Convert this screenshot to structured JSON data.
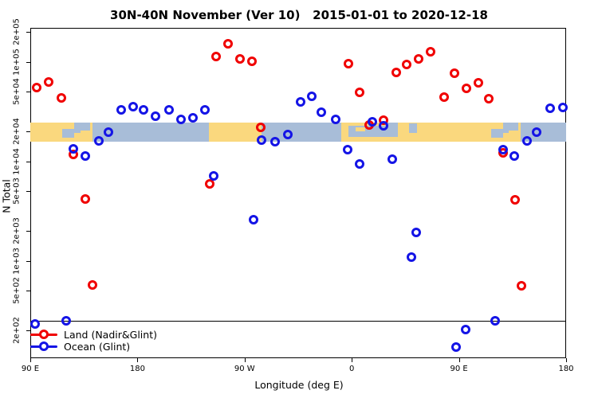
{
  "title": "30N-40N November (Ver 10)   2015-01-01 to 2020-12-18",
  "colors": {
    "land_series": "#f00000",
    "ocean_series": "#1414e6",
    "map_land": "#fad87e",
    "map_ocean": "#a8bdd8",
    "frame": "#000000"
  },
  "chart_data": {
    "type": "scatter",
    "title": "30N-40N November (Ver 10)   2015-01-01 to 2020-12-18",
    "xlabel": "Longitude (deg E)",
    "ylabel": "N Total",
    "x_axis": {
      "start_deg": 90,
      "end_deg": 540,
      "ticks": [
        {
          "deg": 90,
          "label": "90 E"
        },
        {
          "deg": 180,
          "label": "180"
        },
        {
          "deg": 270,
          "label": "90 W"
        },
        {
          "deg": 360,
          "label": "0"
        },
        {
          "deg": 450,
          "label": "90 E"
        },
        {
          "deg": 540,
          "label": "180"
        }
      ]
    },
    "y_axis": {
      "scale": "log",
      "ticks": [
        {
          "value": 200000,
          "label": "2e+05"
        },
        {
          "value": 100000,
          "label": "1e+05"
        },
        {
          "value": 50000,
          "label": "5e+04"
        },
        {
          "value": 20000,
          "label": "2e+04"
        },
        {
          "value": 10000,
          "label": "1e+04"
        },
        {
          "value": 5000,
          "label": "5e+03"
        },
        {
          "value": 2000,
          "label": "2e+03"
        },
        {
          "value": 1000,
          "label": "1e+03"
        },
        {
          "value": 500,
          "label": "5e+02"
        },
        {
          "value": 200,
          "label": "2e+02"
        }
      ]
    },
    "threshold_line_value": 250,
    "map_strip": {
      "top_value": 24500,
      "bottom_value": 15700,
      "base_segments": [
        {
          "from": 90,
          "to": 142,
          "kind": "land"
        },
        {
          "from": 142,
          "to": 240,
          "kind": "ocean"
        },
        {
          "from": 240,
          "to": 284,
          "kind": "land"
        },
        {
          "from": 284,
          "to": 351,
          "kind": "ocean"
        },
        {
          "from": 351,
          "to": 502,
          "kind": "land"
        },
        {
          "from": 502,
          "to": 540,
          "kind": "ocean"
        }
      ],
      "overlays": [
        {
          "from": 117,
          "to": 127,
          "top": 0.35,
          "h": 0.45,
          "kind": "ocean"
        },
        {
          "from": 127,
          "to": 140,
          "top": 0.0,
          "h": 0.55,
          "kind": "ocean"
        },
        {
          "from": 132,
          "to": 142,
          "top": 0.42,
          "h": 0.22,
          "kind": "land"
        },
        {
          "from": 357,
          "to": 399,
          "top": 0.15,
          "h": 0.6,
          "kind": "ocean"
        },
        {
          "from": 388,
          "to": 399,
          "top": 0.0,
          "h": 0.3,
          "kind": "ocean"
        },
        {
          "from": 363,
          "to": 371,
          "top": 0.25,
          "h": 0.2,
          "kind": "land"
        },
        {
          "from": 408,
          "to": 415,
          "top": 0.05,
          "h": 0.5,
          "kind": "ocean"
        },
        {
          "from": 477,
          "to": 487,
          "top": 0.35,
          "h": 0.45,
          "kind": "ocean"
        },
        {
          "from": 487,
          "to": 500,
          "top": 0.0,
          "h": 0.55,
          "kind": "ocean"
        },
        {
          "from": 492,
          "to": 502,
          "top": 0.42,
          "h": 0.22,
          "kind": "land"
        }
      ]
    },
    "series": [
      {
        "name": "Land (Nadir&Glint)",
        "color_key": "land_series",
        "points": [
          [
            95,
            56000
          ],
          [
            105,
            63000
          ],
          [
            116,
            44000
          ],
          [
            126,
            11800
          ],
          [
            136,
            4180
          ],
          [
            142,
            573
          ],
          [
            240,
            5930
          ],
          [
            246,
            114000
          ],
          [
            256,
            152000
          ],
          [
            266,
            108000
          ],
          [
            276,
            102000
          ],
          [
            283,
            22000
          ],
          [
            357,
            96000
          ],
          [
            366,
            50000
          ],
          [
            374,
            23200
          ],
          [
            386,
            25900
          ],
          [
            397,
            79000
          ],
          [
            406,
            94000
          ],
          [
            416,
            108000
          ],
          [
            426,
            128000
          ],
          [
            437,
            44500
          ],
          [
            446,
            78000
          ],
          [
            456,
            55000
          ],
          [
            466,
            62000
          ],
          [
            475,
            43000
          ],
          [
            487,
            12200
          ],
          [
            497,
            4140
          ],
          [
            502,
            570
          ]
        ]
      },
      {
        "name": "Ocean (Glint)",
        "color_key": "ocean_series",
        "points": [
          [
            94,
            235
          ],
          [
            120,
            254
          ],
          [
            126,
            13400
          ],
          [
            136,
            11500
          ],
          [
            147,
            16100
          ],
          [
            155,
            19800
          ],
          [
            166,
            32900
          ],
          [
            176,
            35500
          ],
          [
            185,
            32900
          ],
          [
            195,
            28400
          ],
          [
            206,
            32900
          ],
          [
            216,
            26800
          ],
          [
            226,
            27600
          ],
          [
            236,
            33300
          ],
          [
            244,
            7260
          ],
          [
            277,
            2590
          ],
          [
            284,
            16400
          ],
          [
            295,
            15800
          ],
          [
            306,
            18900
          ],
          [
            317,
            39800
          ],
          [
            326,
            45600
          ],
          [
            334,
            31400
          ],
          [
            346,
            26800
          ],
          [
            356,
            13100
          ],
          [
            366,
            9400
          ],
          [
            377,
            25100
          ],
          [
            386,
            22900
          ],
          [
            394,
            10600
          ],
          [
            410,
            1090
          ],
          [
            414,
            1940
          ],
          [
            447,
            136
          ],
          [
            455,
            205
          ],
          [
            480,
            250
          ],
          [
            487,
            13300
          ],
          [
            496,
            11500
          ],
          [
            507,
            16100
          ],
          [
            515,
            19700
          ],
          [
            526,
            34400
          ],
          [
            537,
            34800
          ]
        ]
      }
    ],
    "legend_position": "bottom-left",
    "grid": false
  },
  "legend": {
    "items": [
      {
        "label": "Land (Nadir&Glint)"
      },
      {
        "label": "Ocean (Glint)"
      }
    ]
  }
}
